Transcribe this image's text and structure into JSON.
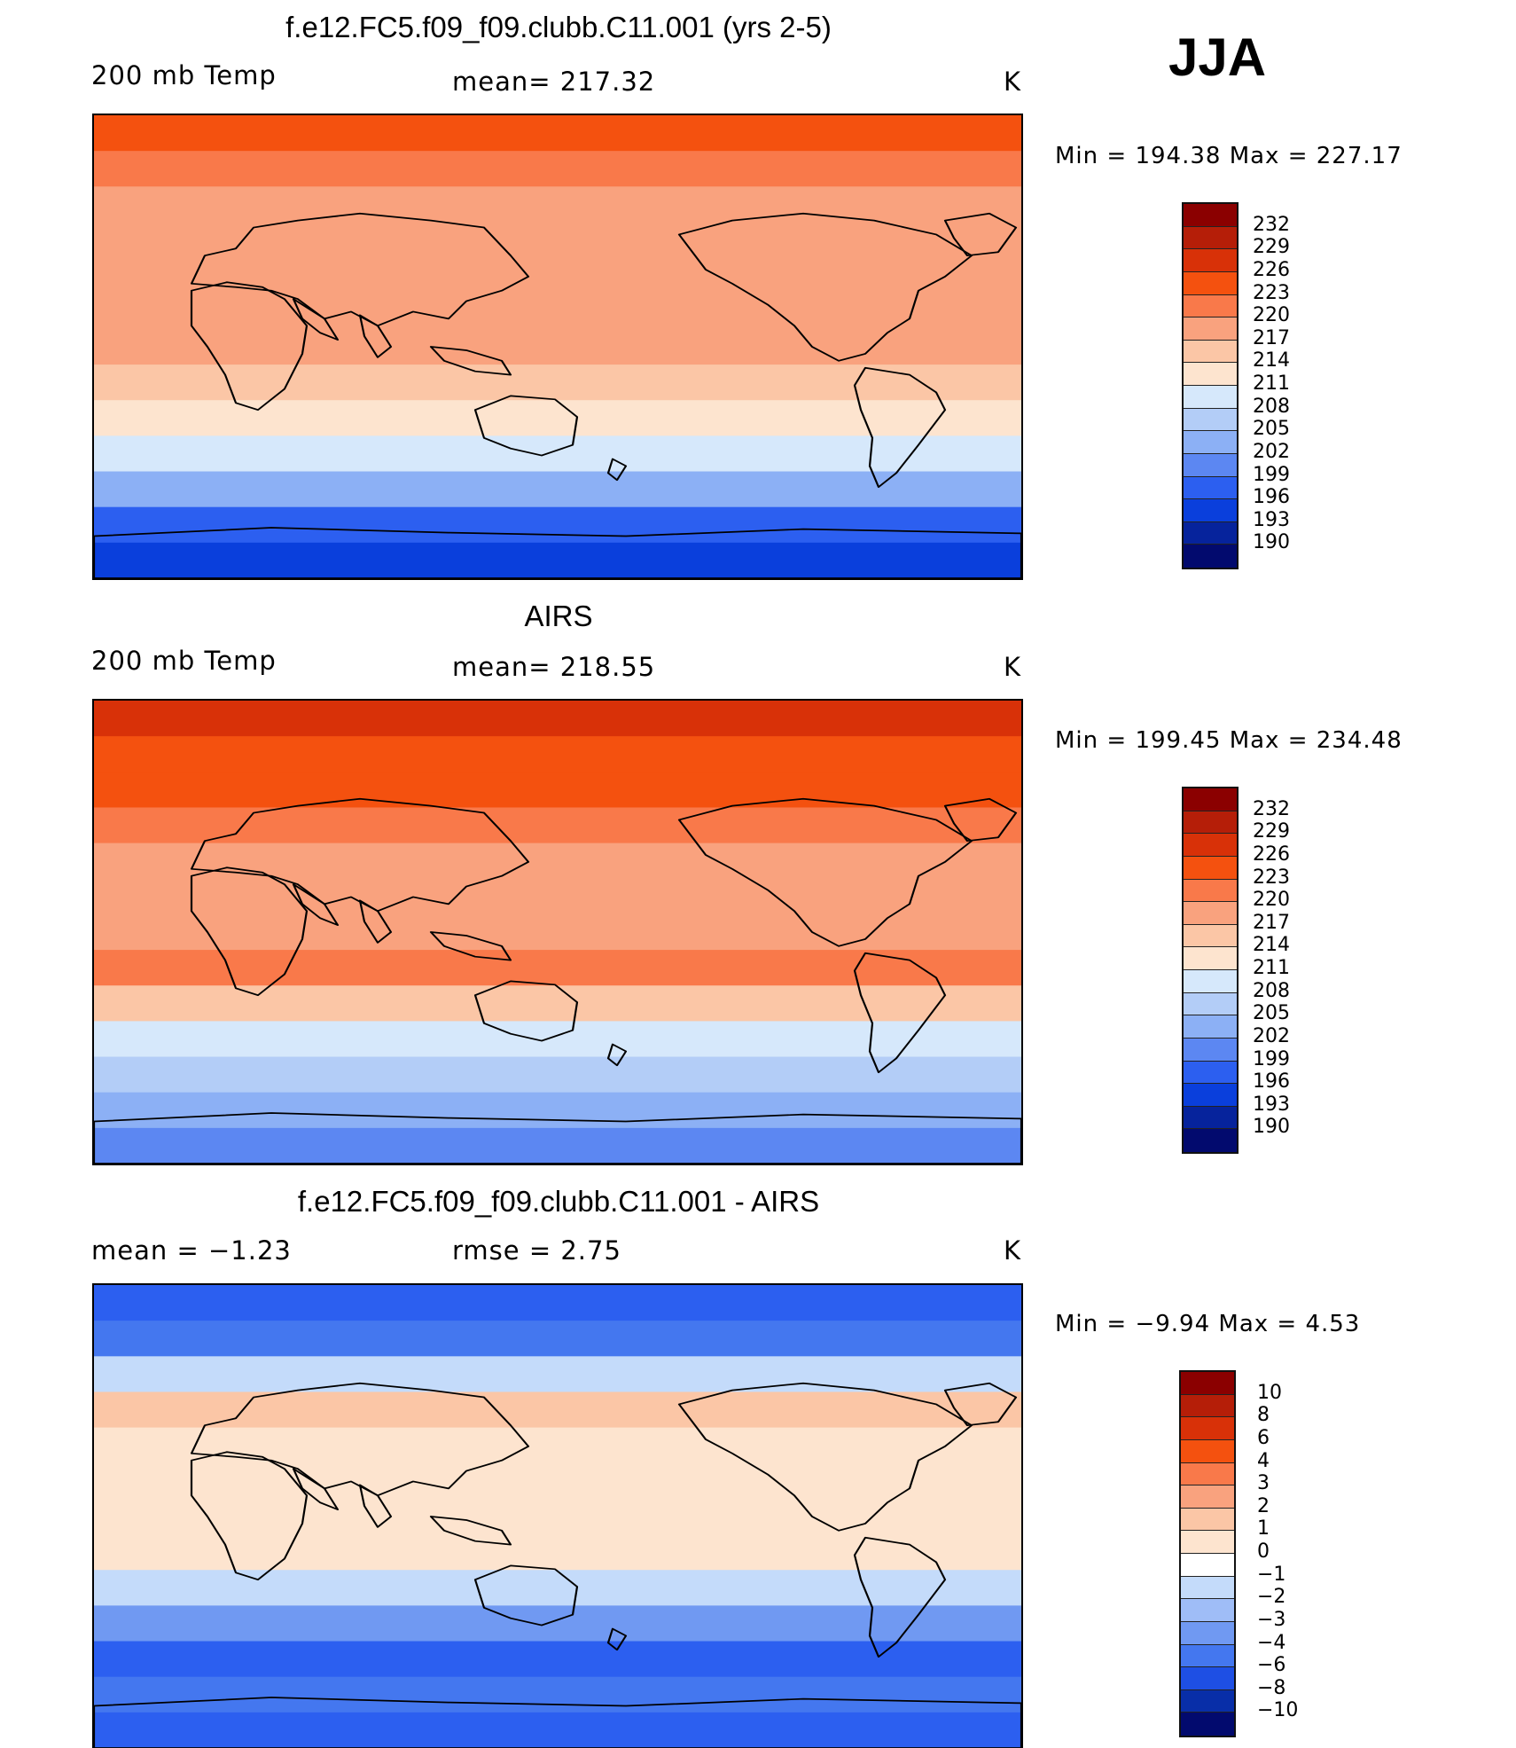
{
  "season": "JJA",
  "panels": [
    {
      "id": "model",
      "title": "f.e12.FC5.f09_f09.clubb.C11.001 (yrs 2-5)",
      "left_label": "200 mb Temp",
      "center_label": "mean= 217.32",
      "units": "K",
      "min_max": "Min = 194.38 Max = 227.17",
      "colorbar_levels": [
        "232",
        "229",
        "226",
        "223",
        "220",
        "217",
        "214",
        "211",
        "208",
        "205",
        "202",
        "199",
        "196",
        "193",
        "190"
      ],
      "colorbar_colors": [
        "#8b0000",
        "#b51e08",
        "#d83108",
        "#f4510f",
        "#f9794a",
        "#f9a27e",
        "#fbc6a6",
        "#fde4cf",
        "#d6e8fb",
        "#b3cdf7",
        "#8cb0f5",
        "#5c87f2",
        "#2c5ff0",
        "#0a3fdc",
        "#06239c",
        "#020a6e"
      ],
      "zonal_bands": [
        "#f4510f",
        "#f9794a",
        "#f9a27e",
        "#f9a27e",
        "#f9a27e",
        "#f9a27e",
        "#f9a27e",
        "#fbc6a6",
        "#fde4cf",
        "#d6e8fb",
        "#8cb0f5",
        "#2c5ff0",
        "#0a3fdc"
      ]
    },
    {
      "id": "obs",
      "title": "AIRS",
      "left_label": "200 mb Temp",
      "center_label": "mean= 218.55",
      "units": "K",
      "min_max": "Min = 199.45 Max = 234.48",
      "colorbar_levels": [
        "232",
        "229",
        "226",
        "223",
        "220",
        "217",
        "214",
        "211",
        "208",
        "205",
        "202",
        "199",
        "196",
        "193",
        "190"
      ],
      "colorbar_colors": [
        "#8b0000",
        "#b51e08",
        "#d83108",
        "#f4510f",
        "#f9794a",
        "#f9a27e",
        "#fbc6a6",
        "#fde4cf",
        "#d6e8fb",
        "#b3cdf7",
        "#8cb0f5",
        "#5c87f2",
        "#2c5ff0",
        "#0a3fdc",
        "#06239c",
        "#020a6e"
      ],
      "zonal_bands": [
        "#d83108",
        "#f4510f",
        "#f4510f",
        "#f9794a",
        "#f9a27e",
        "#f9a27e",
        "#f9a27e",
        "#f9794a",
        "#fbc6a6",
        "#d6e8fb",
        "#b3cdf7",
        "#8cb0f5",
        "#5c87f2"
      ]
    },
    {
      "id": "diff",
      "title": "f.e12.FC5.f09_f09.clubb.C11.001 - AIRS",
      "left_label": "mean =   −1.23",
      "center_label": "rmse =    2.75",
      "units": "K",
      "min_max": "Min =  −9.94 Max =    4.53",
      "colorbar_levels": [
        "10",
        "8",
        "6",
        "4",
        "3",
        "2",
        "1",
        "0",
        "−1",
        "−2",
        "−3",
        "−4",
        "−6",
        "−8",
        "−10"
      ],
      "colorbar_colors": [
        "#8b0000",
        "#b51e08",
        "#d83108",
        "#f4510f",
        "#f9794a",
        "#f9a27e",
        "#fbc6a6",
        "#fde4cf",
        "#ffffff",
        "#c4dbfa",
        "#9fbdf7",
        "#7099f2",
        "#4477ef",
        "#1e4fe4",
        "#082ea8",
        "#020a6e"
      ],
      "zonal_bands": [
        "#2c5ff0",
        "#4477ef",
        "#c4dbfa",
        "#fbc6a6",
        "#fde4cf",
        "#fde4cf",
        "#fde4cf",
        "#fde4cf",
        "#c4dbfa",
        "#7099f2",
        "#2c5ff0",
        "#4477ef",
        "#2c5ff0"
      ]
    }
  ]
}
